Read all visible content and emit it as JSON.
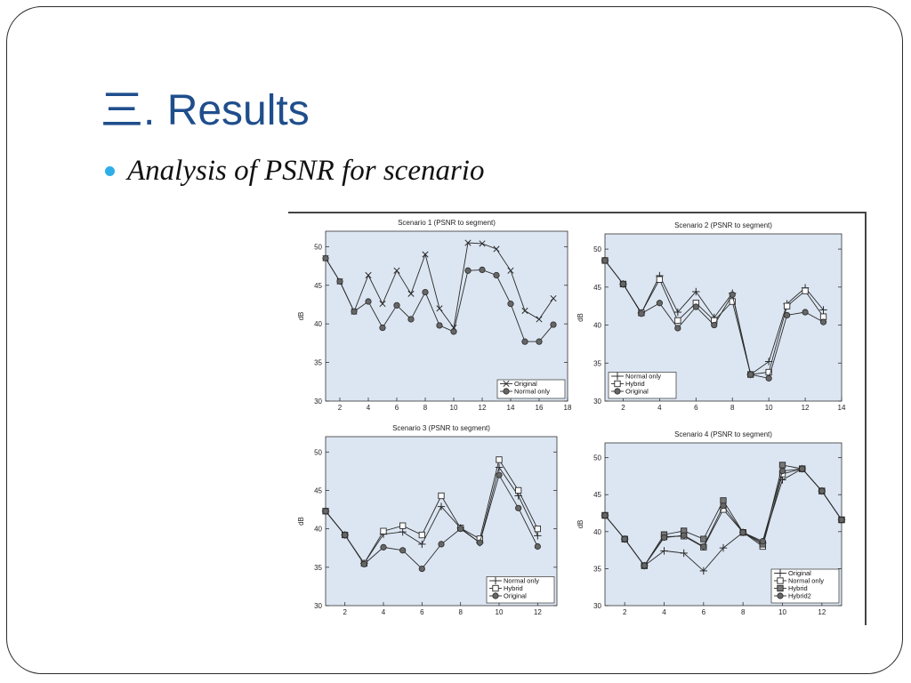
{
  "slide": {
    "title_prefix": "三",
    "title_rest": ". Results",
    "bullet": "Analysis of PSNR for scenario"
  },
  "colors": {
    "title": "#1f4e8c",
    "bullet": "#2eaee8",
    "plot_bg": "#dce6f2",
    "line": "#2a2a2a"
  },
  "chart_data": [
    {
      "type": "line",
      "title": "Scenario 1 (PSNR to segment)",
      "xlabel": "",
      "ylabel": "dB",
      "xlim": [
        1,
        18
      ],
      "ylim": [
        30,
        52
      ],
      "xticks": [
        2,
        4,
        6,
        8,
        10,
        12,
        14,
        16,
        18
      ],
      "yticks": [
        30,
        35,
        40,
        45,
        50
      ],
      "legend": "bottom-right",
      "series": [
        {
          "name": "Original",
          "marker": "x",
          "x": [
            1,
            2,
            3,
            4,
            5,
            6,
            7,
            8,
            9,
            10,
            11,
            12,
            13,
            14,
            15,
            16,
            17
          ],
          "values": [
            48.5,
            45.5,
            41.6,
            46.3,
            42.6,
            46.9,
            43.9,
            49.0,
            42.0,
            39.5,
            50.5,
            50.4,
            49.7,
            46.9,
            41.7,
            40.6,
            43.3
          ]
        },
        {
          "name": "Normal only",
          "marker": "circle",
          "x": [
            1,
            2,
            3,
            4,
            5,
            6,
            7,
            8,
            9,
            10,
            11,
            12,
            13,
            14,
            15,
            16,
            17
          ],
          "values": [
            48.5,
            45.5,
            41.6,
            42.9,
            39.5,
            42.4,
            40.6,
            44.1,
            39.8,
            39.0,
            46.9,
            47.0,
            46.3,
            42.6,
            37.7,
            37.7,
            39.9
          ]
        }
      ]
    },
    {
      "type": "line",
      "title": "Scenario 2 (PSNR to segment)",
      "xlabel": "",
      "ylabel": "dB",
      "xlim": [
        1,
        14
      ],
      "ylim": [
        30,
        52
      ],
      "xticks": [
        2,
        4,
        6,
        8,
        10,
        12,
        14
      ],
      "yticks": [
        30,
        35,
        40,
        45,
        50
      ],
      "legend": "bottom-left",
      "series": [
        {
          "name": "Normal only",
          "marker": "plus",
          "x": [
            1,
            2,
            3,
            4,
            5,
            6,
            7,
            8,
            9,
            10,
            11,
            12,
            13
          ],
          "values": [
            48.5,
            45.4,
            41.6,
            46.5,
            41.7,
            44.4,
            41.0,
            44.2,
            33.5,
            35.2,
            42.8,
            44.9,
            42.0
          ]
        },
        {
          "name": "Hybrid",
          "marker": "square",
          "x": [
            1,
            2,
            3,
            4,
            5,
            6,
            7,
            8,
            9,
            10,
            11,
            12,
            13
          ],
          "values": [
            48.5,
            45.4,
            41.6,
            46.0,
            40.6,
            42.9,
            40.6,
            43.1,
            33.5,
            33.8,
            42.5,
            44.5,
            41.1
          ]
        },
        {
          "name": "Original",
          "marker": "circle",
          "x": [
            1,
            2,
            3,
            4,
            5,
            6,
            7,
            8,
            9,
            10,
            11,
            12,
            13
          ],
          "values": [
            48.5,
            45.4,
            41.5,
            42.9,
            39.6,
            42.4,
            40.0,
            44.0,
            33.5,
            33.0,
            41.3,
            41.7,
            40.4
          ]
        }
      ]
    },
    {
      "type": "line",
      "title": "Scenario 3 (PSNR to segment)",
      "xlabel": "",
      "ylabel": "dB",
      "xlim": [
        1,
        13
      ],
      "ylim": [
        30,
        52
      ],
      "xticks": [
        2,
        4,
        6,
        8,
        10,
        12
      ],
      "yticks": [
        30,
        35,
        40,
        45,
        50
      ],
      "legend": "bottom-right",
      "series": [
        {
          "name": "Normal only",
          "marker": "plus",
          "x": [
            1,
            2,
            3,
            4,
            5,
            6,
            7,
            8,
            9,
            10,
            11,
            12
          ],
          "values": [
            42.3,
            39.2,
            35.5,
            39.3,
            39.6,
            38.0,
            42.9,
            40.1,
            38.2,
            48.0,
            44.3,
            39.1
          ]
        },
        {
          "name": "Hybrid",
          "marker": "square",
          "x": [
            1,
            2,
            3,
            4,
            5,
            6,
            7,
            8,
            9,
            10,
            11,
            12
          ],
          "values": [
            42.3,
            39.2,
            35.5,
            39.7,
            40.4,
            39.2,
            44.3,
            40.1,
            38.7,
            49.0,
            45.0,
            40.0
          ]
        },
        {
          "name": "Original",
          "marker": "circle",
          "x": [
            1,
            2,
            3,
            4,
            5,
            6,
            7,
            8,
            9,
            10,
            11,
            12
          ],
          "values": [
            42.3,
            39.2,
            35.4,
            37.6,
            37.2,
            34.8,
            38.0,
            40.0,
            38.2,
            47.0,
            42.7,
            37.7
          ]
        }
      ]
    },
    {
      "type": "line",
      "title": "Scenario 4 (PSNR to segment)",
      "xlabel": "",
      "ylabel": "dB",
      "xlim": [
        1,
        13
      ],
      "ylim": [
        30,
        52
      ],
      "xticks": [
        2,
        4,
        6,
        8,
        10,
        12
      ],
      "yticks": [
        30,
        35,
        40,
        45,
        50
      ],
      "legend": "bottom-right",
      "series": [
        {
          "name": "Original",
          "marker": "plus",
          "x": [
            1,
            2,
            3,
            4,
            5,
            6,
            7,
            8,
            9,
            10,
            11,
            12,
            13
          ],
          "values": [
            42.2,
            39.0,
            35.4,
            37.4,
            37.1,
            34.7,
            37.8,
            39.9,
            38.5,
            47.0,
            48.5,
            45.5,
            41.6
          ]
        },
        {
          "name": "Normal only",
          "marker": "square",
          "x": [
            1,
            2,
            3,
            4,
            5,
            6,
            7,
            8,
            9,
            10,
            11,
            12,
            13
          ],
          "values": [
            42.2,
            39.0,
            35.4,
            39.3,
            39.4,
            37.9,
            43.0,
            39.9,
            38.0,
            47.8,
            48.5,
            45.5,
            41.6
          ]
        },
        {
          "name": "Hybrid",
          "marker": "square-filled",
          "x": [
            1,
            2,
            3,
            4,
            5,
            6,
            7,
            8,
            9,
            10,
            11,
            12,
            13
          ],
          "values": [
            42.2,
            39.0,
            35.4,
            39.6,
            40.1,
            39.0,
            44.2,
            39.9,
            38.3,
            49.0,
            48.5,
            45.5,
            41.6
          ]
        },
        {
          "name": "Hybrid2",
          "marker": "circle",
          "x": [
            1,
            2,
            3,
            4,
            5,
            6,
            7,
            8,
            9,
            10,
            11,
            12,
            13
          ],
          "values": [
            42.2,
            39.0,
            35.4,
            39.2,
            39.5,
            38.0,
            43.5,
            39.9,
            38.7,
            48.2,
            48.5,
            45.5,
            41.6
          ]
        }
      ]
    }
  ]
}
